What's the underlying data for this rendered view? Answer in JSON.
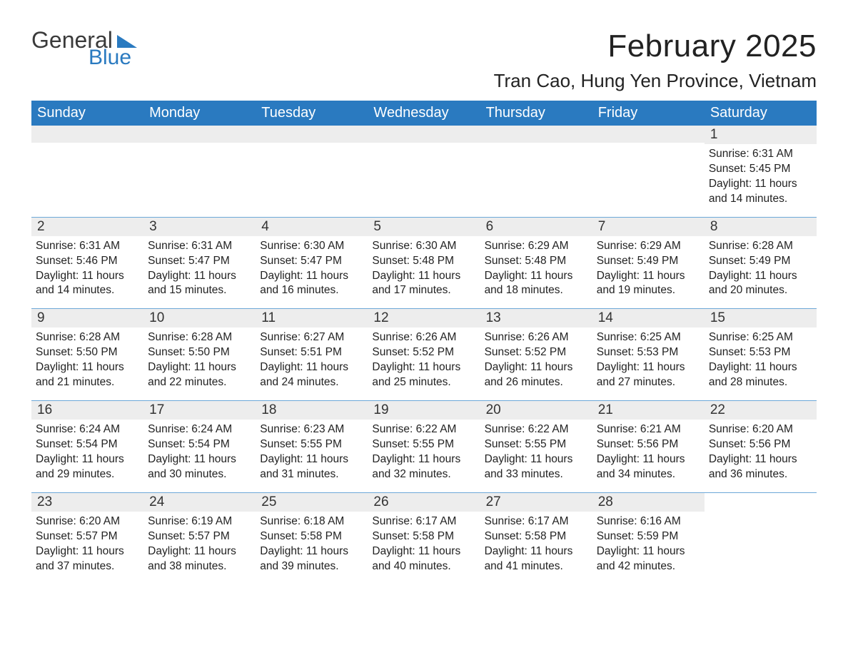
{
  "brand": {
    "part1": "General",
    "part2": "Blue"
  },
  "title": "February 2025",
  "location": "Tran Cao, Hung Yen Province, Vietnam",
  "colors": {
    "header_bg": "#2a7ac0",
    "header_text": "#ffffff",
    "daynum_bg": "#ededed",
    "week_divider": "#6da8d8",
    "text": "#222222",
    "logo_blue": "#2a7ac0",
    "logo_gray": "#3a3a3a",
    "page_bg": "#ffffff"
  },
  "fonts": {
    "title_size_pt": 33,
    "location_size_pt": 20,
    "dow_size_pt": 15,
    "daynum_size_pt": 14,
    "info_size_pt": 12
  },
  "layout": {
    "columns": 7,
    "rows": 5,
    "first_day_col": 6
  },
  "days_of_week": [
    "Sunday",
    "Monday",
    "Tuesday",
    "Wednesday",
    "Thursday",
    "Friday",
    "Saturday"
  ],
  "labels": {
    "sunrise": "Sunrise:",
    "sunset": "Sunset:",
    "daylight": "Daylight:"
  },
  "days": [
    {
      "n": 1,
      "sunrise": "6:31 AM",
      "sunset": "5:45 PM",
      "daylight": "11 hours and 14 minutes."
    },
    {
      "n": 2,
      "sunrise": "6:31 AM",
      "sunset": "5:46 PM",
      "daylight": "11 hours and 14 minutes."
    },
    {
      "n": 3,
      "sunrise": "6:31 AM",
      "sunset": "5:47 PM",
      "daylight": "11 hours and 15 minutes."
    },
    {
      "n": 4,
      "sunrise": "6:30 AM",
      "sunset": "5:47 PM",
      "daylight": "11 hours and 16 minutes."
    },
    {
      "n": 5,
      "sunrise": "6:30 AM",
      "sunset": "5:48 PM",
      "daylight": "11 hours and 17 minutes."
    },
    {
      "n": 6,
      "sunrise": "6:29 AM",
      "sunset": "5:48 PM",
      "daylight": "11 hours and 18 minutes."
    },
    {
      "n": 7,
      "sunrise": "6:29 AM",
      "sunset": "5:49 PM",
      "daylight": "11 hours and 19 minutes."
    },
    {
      "n": 8,
      "sunrise": "6:28 AM",
      "sunset": "5:49 PM",
      "daylight": "11 hours and 20 minutes."
    },
    {
      "n": 9,
      "sunrise": "6:28 AM",
      "sunset": "5:50 PM",
      "daylight": "11 hours and 21 minutes."
    },
    {
      "n": 10,
      "sunrise": "6:28 AM",
      "sunset": "5:50 PM",
      "daylight": "11 hours and 22 minutes."
    },
    {
      "n": 11,
      "sunrise": "6:27 AM",
      "sunset": "5:51 PM",
      "daylight": "11 hours and 24 minutes."
    },
    {
      "n": 12,
      "sunrise": "6:26 AM",
      "sunset": "5:52 PM",
      "daylight": "11 hours and 25 minutes."
    },
    {
      "n": 13,
      "sunrise": "6:26 AM",
      "sunset": "5:52 PM",
      "daylight": "11 hours and 26 minutes."
    },
    {
      "n": 14,
      "sunrise": "6:25 AM",
      "sunset": "5:53 PM",
      "daylight": "11 hours and 27 minutes."
    },
    {
      "n": 15,
      "sunrise": "6:25 AM",
      "sunset": "5:53 PM",
      "daylight": "11 hours and 28 minutes."
    },
    {
      "n": 16,
      "sunrise": "6:24 AM",
      "sunset": "5:54 PM",
      "daylight": "11 hours and 29 minutes."
    },
    {
      "n": 17,
      "sunrise": "6:24 AM",
      "sunset": "5:54 PM",
      "daylight": "11 hours and 30 minutes."
    },
    {
      "n": 18,
      "sunrise": "6:23 AM",
      "sunset": "5:55 PM",
      "daylight": "11 hours and 31 minutes."
    },
    {
      "n": 19,
      "sunrise": "6:22 AM",
      "sunset": "5:55 PM",
      "daylight": "11 hours and 32 minutes."
    },
    {
      "n": 20,
      "sunrise": "6:22 AM",
      "sunset": "5:55 PM",
      "daylight": "11 hours and 33 minutes."
    },
    {
      "n": 21,
      "sunrise": "6:21 AM",
      "sunset": "5:56 PM",
      "daylight": "11 hours and 34 minutes."
    },
    {
      "n": 22,
      "sunrise": "6:20 AM",
      "sunset": "5:56 PM",
      "daylight": "11 hours and 36 minutes."
    },
    {
      "n": 23,
      "sunrise": "6:20 AM",
      "sunset": "5:57 PM",
      "daylight": "11 hours and 37 minutes."
    },
    {
      "n": 24,
      "sunrise": "6:19 AM",
      "sunset": "5:57 PM",
      "daylight": "11 hours and 38 minutes."
    },
    {
      "n": 25,
      "sunrise": "6:18 AM",
      "sunset": "5:58 PM",
      "daylight": "11 hours and 39 minutes."
    },
    {
      "n": 26,
      "sunrise": "6:17 AM",
      "sunset": "5:58 PM",
      "daylight": "11 hours and 40 minutes."
    },
    {
      "n": 27,
      "sunrise": "6:17 AM",
      "sunset": "5:58 PM",
      "daylight": "11 hours and 41 minutes."
    },
    {
      "n": 28,
      "sunrise": "6:16 AM",
      "sunset": "5:59 PM",
      "daylight": "11 hours and 42 minutes."
    }
  ]
}
